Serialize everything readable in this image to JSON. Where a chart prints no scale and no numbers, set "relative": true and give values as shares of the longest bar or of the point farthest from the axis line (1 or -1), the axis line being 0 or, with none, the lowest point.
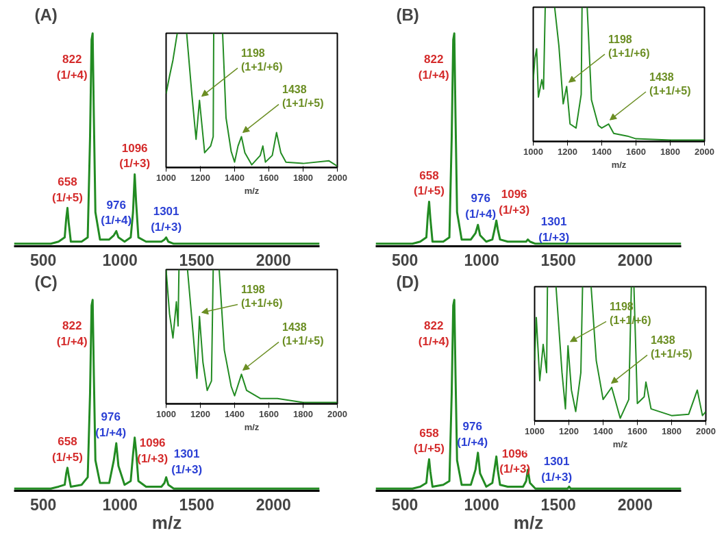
{
  "chart_data": [
    {
      "type": "line",
      "title": "(A)",
      "relative": true,
      "xlim": [
        310,
        2300
      ],
      "xticks": [
        500,
        1000,
        1500,
        2000
      ],
      "x": [
        310,
        550,
        600,
        640,
        650,
        658,
        666,
        680,
        750,
        790,
        805,
        815,
        822,
        830,
        840,
        870,
        930,
        960,
        976,
        990,
        1030,
        1070,
        1085,
        1096,
        1105,
        1120,
        1170,
        1270,
        1290,
        1301,
        1315,
        1350,
        1500,
        1560,
        1570,
        1580,
        2300
      ],
      "series": [
        {
          "color": "#228b22",
          "values": [
            0,
            0,
            0.01,
            0.03,
            0.12,
            0.17,
            0.1,
            0.01,
            0.01,
            0.03,
            0.5,
            0.97,
            1,
            0.6,
            0.15,
            0.02,
            0.02,
            0.04,
            0.06,
            0.03,
            0.01,
            0.03,
            0.15,
            0.33,
            0.2,
            0.03,
            0.01,
            0.01,
            0.02,
            0.03,
            0.01,
            0,
            0,
            0,
            0,
            0,
            0
          ]
        }
      ],
      "annotations": [
        {
          "text": "658\n(1/+5)",
          "x": 658,
          "y": 0.17
        },
        {
          "text": "822\n(1/+4)",
          "x": 822,
          "y": 1
        },
        {
          "text": "976\n(1/+4)",
          "x": 976,
          "y": 0.06
        },
        {
          "text": "1096\n(1/+3)",
          "x": 1096,
          "y": 0.33
        },
        {
          "text": "1301\n(1/+3)",
          "x": 1301,
          "y": 0.03
        }
      ]
    },
    {
      "type": "line",
      "xlabel": "m/z",
      "relative": true,
      "xlim": [
        1000,
        2000
      ],
      "xticks": [
        1000,
        1200,
        1400,
        1600,
        1800,
        2000
      ],
      "x": [
        1000,
        1020,
        1040,
        1065,
        1090,
        1120,
        1150,
        1175,
        1195,
        1205,
        1225,
        1260,
        1275,
        1278,
        1300,
        1330,
        1350,
        1380,
        1400,
        1420,
        1440,
        1460,
        1500,
        1550,
        1565,
        1580,
        1620,
        1645,
        1670,
        1700,
        1800,
        1950,
        2000
      ],
      "series": [
        {
          "color": "#228b22",
          "values": [
            0.55,
            0.68,
            0.8,
            1,
            null,
            1,
            0.55,
            0.21,
            0.5,
            0.37,
            0.11,
            0.16,
            0.23,
            1,
            null,
            1,
            0.37,
            0.12,
            0.04,
            0.16,
            0.23,
            0.11,
            0.02,
            0.09,
            0.16,
            0.04,
            0.09,
            0.26,
            0.11,
            0.04,
            0.03,
            0.05,
            0.01
          ]
        }
      ],
      "annotations": [
        {
          "text": "1198\n(1+1/+6)",
          "x": 1198,
          "y": 0.5
        },
        {
          "text": "1438\n(1+1/+5)",
          "x": 1438,
          "y": 0.23
        }
      ]
    },
    {
      "type": "line",
      "title": "(B)",
      "relative": true,
      "xlim": [
        310,
        2300
      ],
      "xticks": [
        500,
        1000,
        1500,
        2000
      ],
      "x": [
        310,
        550,
        600,
        640,
        650,
        658,
        666,
        680,
        750,
        790,
        805,
        815,
        822,
        830,
        840,
        870,
        930,
        960,
        976,
        990,
        1030,
        1070,
        1085,
        1096,
        1105,
        1120,
        1170,
        1270,
        1290,
        1301,
        1315,
        1350,
        1500,
        1560,
        1570,
        1580,
        2300
      ],
      "series": [
        {
          "color": "#228b22",
          "values": [
            0,
            0,
            0.01,
            0.03,
            0.14,
            0.2,
            0.12,
            0.01,
            0.01,
            0.03,
            0.5,
            0.97,
            1,
            0.6,
            0.15,
            0.02,
            0.02,
            0.05,
            0.09,
            0.04,
            0.01,
            0.02,
            0.07,
            0.11,
            0.07,
            0.02,
            0.01,
            0.01,
            0.01,
            0.02,
            0.01,
            0,
            0,
            0,
            0,
            0,
            0
          ]
        }
      ],
      "annotations": [
        {
          "text": "658\n(1/+5)",
          "x": 658,
          "y": 0.2
        },
        {
          "text": "822\n(1/+4)",
          "x": 822,
          "y": 1
        },
        {
          "text": "976\n(1/+4)",
          "x": 976,
          "y": 0.09
        },
        {
          "text": "1096\n(1/+3)",
          "x": 1096,
          "y": 0.11
        },
        {
          "text": "1301\n(1/+3)",
          "x": 1301,
          "y": 0.02
        }
      ]
    },
    {
      "type": "line",
      "xlabel": "m/z",
      "relative": true,
      "xlim": [
        1000,
        2000
      ],
      "xticks": [
        1000,
        1200,
        1400,
        1600,
        1800,
        2000
      ],
      "x": [
        1000,
        1010,
        1020,
        1030,
        1050,
        1060,
        1070,
        1100,
        1125,
        1150,
        1175,
        1195,
        1215,
        1250,
        1280,
        1285,
        1300,
        1315,
        1340,
        1380,
        1400,
        1440,
        1470,
        1550,
        1600,
        1800,
        2000
      ],
      "series": [
        {
          "color": "#228b22",
          "values": [
            0.46,
            0.62,
            0.69,
            0.33,
            0.46,
            0.39,
            1,
            null,
            1,
            0.71,
            0.28,
            0.41,
            0.13,
            0.1,
            0.35,
            1,
            null,
            1,
            0.31,
            0.12,
            0.1,
            0.13,
            0.06,
            0.04,
            0.02,
            0.01,
            0.01
          ]
        }
      ],
      "annotations": [
        {
          "text": "1198\n(1+1/+6)",
          "x": 1198,
          "y": 0.41
        },
        {
          "text": "1438\n(1+1/+5)",
          "x": 1438,
          "y": 0.13
        }
      ]
    },
    {
      "type": "line",
      "title": "(C)",
      "xlabel": "m/z",
      "relative": true,
      "xlim": [
        310,
        2300
      ],
      "xticks": [
        500,
        1000,
        1500,
        2000
      ],
      "x": [
        310,
        550,
        600,
        640,
        650,
        658,
        666,
        680,
        750,
        790,
        805,
        815,
        822,
        830,
        840,
        870,
        930,
        960,
        976,
        990,
        1030,
        1070,
        1085,
        1096,
        1105,
        1120,
        1170,
        1270,
        1290,
        1301,
        1315,
        1350,
        1500,
        1560,
        1570,
        1580,
        2300
      ],
      "series": [
        {
          "color": "#228b22",
          "values": [
            0,
            0,
            0.01,
            0.02,
            0.08,
            0.11,
            0.07,
            0.01,
            0.02,
            0.06,
            0.5,
            0.97,
            1,
            0.6,
            0.15,
            0.03,
            0.03,
            0.15,
            0.24,
            0.12,
            0.02,
            0.04,
            0.18,
            0.27,
            0.2,
            0.04,
            0.01,
            0.01,
            0.03,
            0.06,
            0.02,
            0,
            0,
            0,
            0,
            0,
            0
          ]
        }
      ],
      "annotations": [
        {
          "text": "658\n(1/+5)",
          "x": 658,
          "y": 0.11
        },
        {
          "text": "822\n(1/+4)",
          "x": 822,
          "y": 1
        },
        {
          "text": "976\n(1/+4)",
          "x": 976,
          "y": 0.24
        },
        {
          "text": "1096\n(1/+3)",
          "x": 1096,
          "y": 0.27
        },
        {
          "text": "1301\n(1/+3)",
          "x": 1301,
          "y": 0.06
        }
      ]
    },
    {
      "type": "line",
      "xlabel": "m/z",
      "relative": true,
      "xlim": [
        1000,
        2000
      ],
      "xticks": [
        1000,
        1200,
        1400,
        1600,
        1800,
        2000
      ],
      "x": [
        1000,
        1020,
        1040,
        1060,
        1070,
        1075,
        1100,
        1125,
        1160,
        1180,
        1195,
        1215,
        1240,
        1265,
        1275,
        1290,
        1310,
        1340,
        1380,
        1400,
        1440,
        1470,
        1550,
        1650,
        1800,
        2000
      ],
      "series": [
        {
          "color": "#228b22",
          "values": [
            1,
            0.67,
            0.49,
            0.76,
            0.58,
            1,
            null,
            1,
            0.49,
            0.19,
            0.65,
            0.31,
            0.1,
            0.17,
            1,
            null,
            1,
            0.4,
            0.13,
            0.06,
            0.22,
            0.1,
            0.04,
            0.04,
            0.01,
            0.01
          ]
        }
      ],
      "annotations": [
        {
          "text": "1198\n(1+1/+6)",
          "x": 1198,
          "y": 0.65
        },
        {
          "text": "1438\n(1+1/+5)",
          "x": 1438,
          "y": 0.22
        }
      ]
    },
    {
      "type": "line",
      "title": "(D)",
      "xlabel": "m/z",
      "relative": true,
      "xlim": [
        310,
        2300
      ],
      "xticks": [
        500,
        1000,
        1500,
        2000
      ],
      "x": [
        310,
        550,
        600,
        640,
        650,
        658,
        666,
        680,
        750,
        790,
        805,
        815,
        822,
        830,
        840,
        870,
        930,
        960,
        976,
        990,
        1030,
        1070,
        1085,
        1096,
        1105,
        1120,
        1170,
        1270,
        1290,
        1301,
        1315,
        1350,
        1500,
        1560,
        1570,
        1580,
        2300
      ],
      "series": [
        {
          "color": "#228b22",
          "values": [
            0,
            0,
            0.01,
            0.03,
            0.11,
            0.155,
            0.09,
            0.01,
            0.02,
            0.04,
            0.5,
            0.97,
            1,
            0.6,
            0.15,
            0.02,
            0.02,
            0.1,
            0.19,
            0.08,
            0.01,
            0.03,
            0.11,
            0.17,
            0.1,
            0.02,
            0.01,
            0.01,
            0.04,
            0.1,
            0.03,
            0,
            0,
            0,
            0.01,
            0,
            0
          ]
        }
      ],
      "annotations": [
        {
          "text": "658\n(1/+5)",
          "x": 658,
          "y": 0.155
        },
        {
          "text": "822\n(1/+4)",
          "x": 822,
          "y": 1
        },
        {
          "text": "976\n(1/+4)",
          "x": 976,
          "y": 0.19
        },
        {
          "text": "1096\n(1/+3)",
          "x": 1096,
          "y": 0.17
        },
        {
          "text": "1301\n(1/+3)",
          "x": 1301,
          "y": 0.1
        }
      ]
    },
    {
      "type": "line",
      "xlabel": "m/z",
      "relative": true,
      "xlim": [
        1000,
        2000
      ],
      "xticks": [
        1000,
        1200,
        1400,
        1600,
        1800,
        2000
      ],
      "x": [
        1000,
        1010,
        1030,
        1050,
        1070,
        1075,
        1100,
        1125,
        1160,
        1180,
        1195,
        1215,
        1240,
        1270,
        1280,
        1300,
        1330,
        1360,
        1400,
        1450,
        1500,
        1550,
        1565,
        1575,
        1580,
        1600,
        1640,
        1650,
        1680,
        1800,
        1900,
        1950,
        1980,
        2000
      ],
      "series": [
        {
          "color": "#228b22",
          "values": [
            0.45,
            0.77,
            0.3,
            0.57,
            0.36,
            1,
            null,
            1,
            0.36,
            0.09,
            0.56,
            0.23,
            0.07,
            0.36,
            1,
            null,
            1,
            0.45,
            0.16,
            0.25,
            0.02,
            0.16,
            1,
            null,
            1,
            0.13,
            0.18,
            0.29,
            0.09,
            0.04,
            0.05,
            0.23,
            0.04,
            0.07
          ]
        }
      ],
      "annotations": [
        {
          "text": "1198\n(1+1/+6)",
          "x": 1198,
          "y": 0.56
        },
        {
          "text": "1438\n(1+1/+5)",
          "x": 1438,
          "y": 0.25
        }
      ]
    }
  ]
}
